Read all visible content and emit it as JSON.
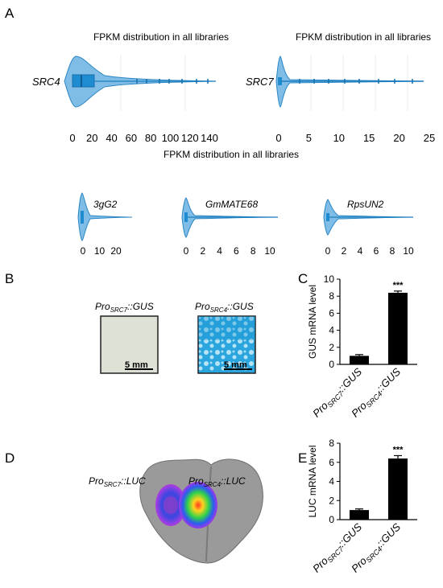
{
  "panel_letters": [
    "A",
    "B",
    "C",
    "D",
    "E"
  ],
  "colors": {
    "violin_fill": "#7fbde6",
    "violin_edge": "#2b86c5",
    "box_fill": "#1f8cd1",
    "bar": "#000000",
    "gus_blue": "#2aa5de",
    "leaf": "#9a9a9a"
  },
  "panel_a": {
    "title_left": "FPKM distribution in all libraries",
    "title_right": "FPKM distribution in all libraries",
    "title_bottom": "FPKM distribution in all libraries",
    "violins": [
      {
        "gene": "SRC4",
        "ticks": [
          "0",
          "20",
          "40",
          "60",
          "80",
          "100",
          "120",
          "140"
        ]
      },
      {
        "gene": "SRC7",
        "ticks": [
          "0",
          "5",
          "10",
          "15",
          "20",
          "25"
        ]
      },
      {
        "gene": "3gG2",
        "ticks": [
          "0",
          "10",
          "20"
        ]
      },
      {
        "gene": "GmMATE68",
        "ticks": [
          "0",
          "2",
          "4",
          "6",
          "8",
          "10"
        ]
      },
      {
        "gene": "RpsUN2",
        "ticks": [
          "0",
          "2",
          "4",
          "6",
          "8",
          "10"
        ]
      }
    ]
  },
  "panel_b": {
    "left_label": {
      "pro": "Pro",
      "sub": "SRC7",
      "rest": "::GUS"
    },
    "right_label": {
      "pro": "Pro",
      "sub": "SRC4",
      "rest": "::GUS"
    },
    "scale_left": "5 mm",
    "scale_right": "5 mm"
  },
  "panel_d": {
    "left_label": {
      "pro": "Pro",
      "sub": "SRC7",
      "rest": "::LUC"
    },
    "right_label": {
      "pro": "Pro",
      "sub": "SRC4",
      "rest": "::LUC"
    }
  },
  "chart_data": [
    {
      "type": "bar",
      "panel": "C",
      "ylabel": "GUS mRNA level",
      "ylim": [
        0,
        10
      ],
      "yticks": [
        "0",
        "2",
        "4",
        "6",
        "8",
        "10"
      ],
      "categories": [
        {
          "pro": "Pro",
          "sub": "SRC7",
          "rest": "::GUS"
        },
        {
          "pro": "Pro",
          "sub": "SRC4",
          "rest": "::GUS"
        }
      ],
      "values": [
        1.0,
        8.4
      ],
      "errors": [
        0.15,
        0.2
      ],
      "annotations": [
        "",
        "***"
      ]
    },
    {
      "type": "bar",
      "panel": "E",
      "ylabel": "LUC mRNA level",
      "ylim": [
        0,
        8
      ],
      "yticks": [
        "0",
        "2",
        "4",
        "6",
        "8"
      ],
      "categories": [
        {
          "pro": "Pro",
          "sub": "SRC7",
          "rest": "::GUS"
        },
        {
          "pro": "Pro",
          "sub": "SRC4",
          "rest": "::GUS"
        }
      ],
      "values": [
        1.0,
        6.4
      ],
      "errors": [
        0.12,
        0.3
      ],
      "annotations": [
        "",
        "***"
      ]
    }
  ]
}
